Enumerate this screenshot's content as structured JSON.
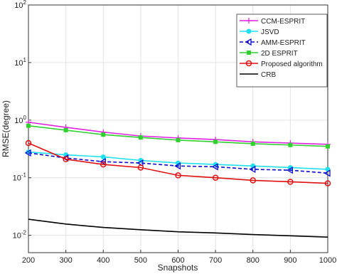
{
  "chart_data": {
    "type": "line",
    "xlabel": "Snapshots",
    "ylabel": "RMSE(degree)",
    "x": [
      200,
      300,
      400,
      500,
      600,
      700,
      800,
      900,
      1000
    ],
    "xlim": [
      200,
      1000
    ],
    "xticks": [
      200,
      300,
      400,
      500,
      600,
      700,
      800,
      900,
      1000
    ],
    "ylim": [
      0.005,
      100
    ],
    "log_y": true,
    "grid": true,
    "legend": "upper right",
    "yticks": [
      {
        "value": 0.01,
        "label": "10^-2"
      },
      {
        "value": 0.1,
        "label": "10^-1"
      },
      {
        "value": 1,
        "label": "10^0"
      },
      {
        "value": 10,
        "label": "10^1"
      },
      {
        "value": 100,
        "label": "10^2"
      }
    ],
    "series": [
      {
        "name": "CCM-ESPRIT",
        "color": "#e020e0",
        "marker": "plus",
        "values": [
          0.92,
          0.75,
          0.62,
          0.53,
          0.49,
          0.46,
          0.42,
          0.4,
          0.38
        ]
      },
      {
        "name": "JSVD",
        "color": "#20e0f0",
        "marker": "circle-filled",
        "values": [
          0.28,
          0.25,
          0.23,
          0.2,
          0.18,
          0.17,
          0.16,
          0.15,
          0.14
        ]
      },
      {
        "name": "AMM-ESPRIT",
        "color": "#0a0ad0",
        "marker": "triangle-left",
        "dashed": true,
        "values": [
          0.27,
          0.22,
          0.19,
          0.18,
          0.16,
          0.155,
          0.14,
          0.135,
          0.12
        ]
      },
      {
        "name": "2D ESPRIT",
        "color": "#30d030",
        "marker": "square-filled",
        "values": [
          0.8,
          0.67,
          0.56,
          0.5,
          0.45,
          0.42,
          0.39,
          0.37,
          0.35
        ]
      },
      {
        "name": "Proposed algorithm",
        "color": "#e01010",
        "marker": "circle",
        "values": [
          0.4,
          0.21,
          0.17,
          0.15,
          0.11,
          0.1,
          0.09,
          0.085,
          0.08
        ]
      },
      {
        "name": "CRB",
        "color": "#000000",
        "marker": "none",
        "values": [
          0.019,
          0.0157,
          0.0137,
          0.0125,
          0.0115,
          0.011,
          0.0103,
          0.0098,
          0.0093
        ]
      }
    ]
  }
}
